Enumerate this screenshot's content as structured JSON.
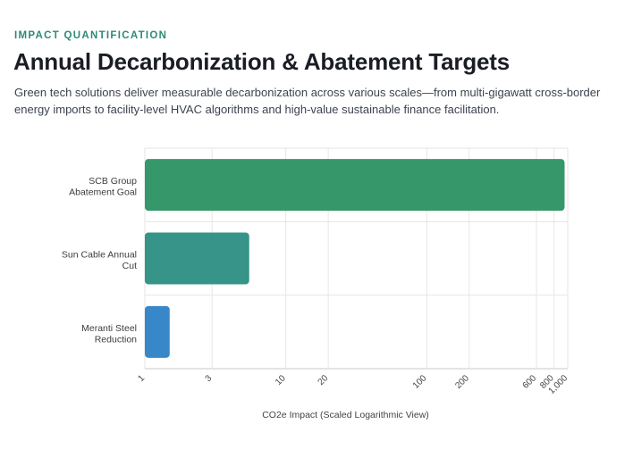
{
  "header": {
    "eyebrow": "IMPACT QUANTIFICATION",
    "title": "Annual Decarbonization & Abatement Targets",
    "subtitle": "Green tech solutions deliver measurable decarbonization across various scales—from multi-gigawatt cross-border energy imports to facility-level HVAC algorithms and high-value sustainable finance facilitation."
  },
  "colors": {
    "accent": "#2e8a73",
    "bars": [
      "#36976a",
      "#369488",
      "#3887c8"
    ]
  },
  "chart_data": {
    "type": "bar",
    "orientation": "horizontal",
    "categories": [
      [
        "SCB Group",
        "Abatement Goal"
      ],
      [
        "Sun Cable Annual",
        "Cut"
      ],
      [
        "Meranti Steel",
        "Reduction"
      ]
    ],
    "values": [
      950,
      5.5,
      1.5
    ],
    "xlabel": "CO2e Impact (Scaled Logarithmic View)",
    "xscale": "log",
    "xlim": [
      1,
      1000
    ],
    "xticks": [
      1,
      3,
      10,
      20,
      100,
      200,
      600,
      800,
      1000
    ],
    "xtick_labels": [
      "1",
      "3",
      "10",
      "20",
      "100",
      "200",
      "600",
      "800",
      "1,000"
    ],
    "grid": true,
    "legend": "none"
  }
}
